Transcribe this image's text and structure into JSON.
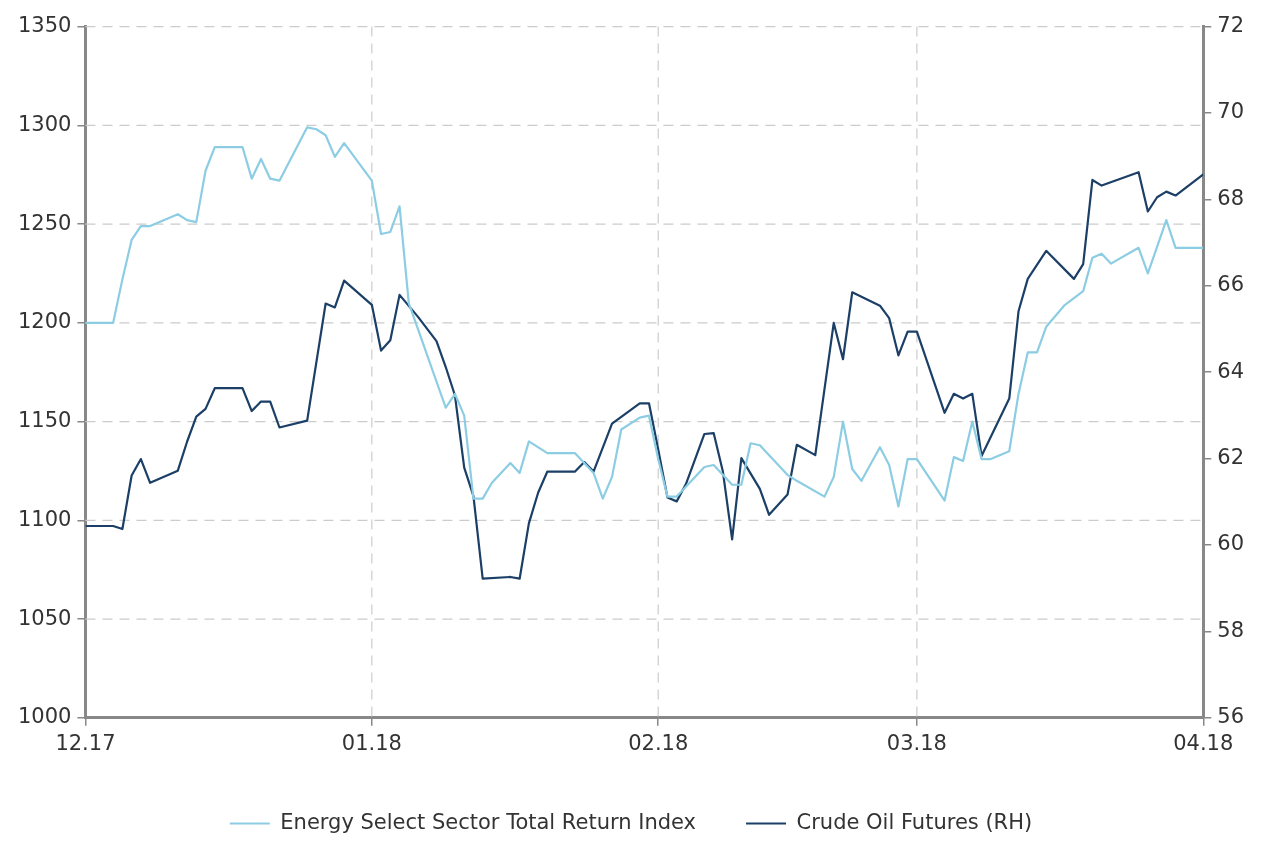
{
  "chart_data": {
    "type": "line",
    "xlim": [
      "2017-12-01",
      "2018-04-01"
    ],
    "xticks": [
      {
        "value": "2017-12-01",
        "label": "12.17"
      },
      {
        "value": "2018-01-01",
        "label": "01.18"
      },
      {
        "value": "2018-02-01",
        "label": "02.18"
      },
      {
        "value": "2018-03-01",
        "label": "03.18"
      },
      {
        "value": "2018-04-01",
        "label": "04.18"
      }
    ],
    "ylim": [
      1000,
      1350
    ],
    "yticks": [
      1000,
      1050,
      1100,
      1150,
      1200,
      1250,
      1300,
      1350
    ],
    "y2lim": [
      56,
      72
    ],
    "y2ticks": [
      56,
      58,
      60,
      62,
      64,
      66,
      68,
      70,
      72
    ],
    "grid": true,
    "legend": "bottom",
    "line_style": "solid",
    "series": [
      {
        "name": "Energy Select Sector Total Return Index",
        "color": "#8ccde3",
        "x": [
          "2017-12-01",
          "2017-12-04",
          "2017-12-05",
          "2017-12-06",
          "2017-12-07",
          "2017-12-08",
          "2017-12-11",
          "2017-12-12",
          "2017-12-13",
          "2017-12-14",
          "2017-12-15",
          "2017-12-18",
          "2017-12-19",
          "2017-12-20",
          "2017-12-21",
          "2017-12-22",
          "2017-12-25",
          "2017-12-26",
          "2017-12-27",
          "2017-12-28",
          "2017-12-29",
          "2018-01-01",
          "2018-01-02",
          "2018-01-03",
          "2018-01-04",
          "2018-01-05",
          "2018-01-09",
          "2018-01-10",
          "2018-01-11",
          "2018-01-12",
          "2018-01-13",
          "2018-01-14",
          "2018-01-16",
          "2018-01-17",
          "2018-01-18",
          "2018-01-20",
          "2018-01-23",
          "2018-01-25",
          "2018-01-26",
          "2018-01-27",
          "2018-01-28",
          "2018-01-30",
          "2018-01-31",
          "2018-02-01",
          "2018-02-02",
          "2018-02-03",
          "2018-02-06",
          "2018-02-07",
          "2018-02-09",
          "2018-02-10",
          "2018-02-11",
          "2018-02-12",
          "2018-02-14",
          "2018-02-15",
          "2018-02-16",
          "2018-02-19",
          "2018-02-20",
          "2018-02-21",
          "2018-02-22",
          "2018-02-23",
          "2018-02-25",
          "2018-02-26",
          "2018-02-27",
          "2018-02-28",
          "2018-03-01",
          "2018-03-04",
          "2018-03-05",
          "2018-03-06",
          "2018-03-07",
          "2018-03-08",
          "2018-03-09",
          "2018-03-11",
          "2018-03-12",
          "2018-03-13",
          "2018-03-14",
          "2018-03-15",
          "2018-03-17",
          "2018-03-19",
          "2018-03-20",
          "2018-03-21",
          "2018-03-22",
          "2018-03-25",
          "2018-03-26",
          "2018-03-28",
          "2018-03-29",
          "2018-04-01"
        ],
        "values": [
          1200,
          1200,
          1222,
          1242,
          1249,
          1249,
          1255,
          1252,
          1251,
          1277,
          1289,
          1289,
          1273,
          1283,
          1273,
          1272,
          1299,
          1298,
          1295,
          1284,
          1291,
          1272,
          1245,
          1246,
          1259,
          1210,
          1157,
          1164,
          1153,
          1111,
          1111,
          1119,
          1129,
          1124,
          1140,
          1134,
          1134,
          1124,
          1111,
          1122,
          1146,
          1152,
          1153,
          1131,
          1112,
          1112,
          1127,
          1128,
          1118,
          1118,
          1139,
          1138,
          1128,
          1123,
          1120,
          1112,
          1122,
          1150,
          1126,
          1120,
          1137,
          1128,
          1107,
          1131,
          1131,
          1110,
          1132,
          1130,
          1150,
          1131,
          1131,
          1135,
          1164,
          1185,
          1185,
          1198,
          1209,
          1216,
          1233,
          1235,
          1230,
          1238,
          1225,
          1252,
          1238,
          1238
        ]
      },
      {
        "name": "Crude Oil Futures (RH)",
        "color": "#1b3f66",
        "axis": "y2",
        "x": [
          "2017-12-01",
          "2017-12-04",
          "2017-12-05",
          "2017-12-06",
          "2017-12-07",
          "2017-12-08",
          "2017-12-11",
          "2017-12-12",
          "2017-12-13",
          "2017-12-14",
          "2017-12-15",
          "2017-12-18",
          "2017-12-19",
          "2017-12-20",
          "2017-12-21",
          "2017-12-22",
          "2017-12-25",
          "2017-12-27",
          "2017-12-28",
          "2017-12-29",
          "2018-01-01",
          "2018-01-02",
          "2018-01-03",
          "2018-01-04",
          "2018-01-06",
          "2018-01-08",
          "2018-01-09",
          "2018-01-10",
          "2018-01-11",
          "2018-01-12",
          "2018-01-13",
          "2018-01-16",
          "2018-01-17",
          "2018-01-18",
          "2018-01-19",
          "2018-01-20",
          "2018-01-23",
          "2018-01-24",
          "2018-01-25",
          "2018-01-27",
          "2018-01-30",
          "2018-01-31",
          "2018-02-01",
          "2018-02-02",
          "2018-02-03",
          "2018-02-04",
          "2018-02-06",
          "2018-02-07",
          "2018-02-08",
          "2018-02-09",
          "2018-02-10",
          "2018-02-12",
          "2018-02-13",
          "2018-02-15",
          "2018-02-16",
          "2018-02-18",
          "2018-02-20",
          "2018-02-21",
          "2018-02-22",
          "2018-02-25",
          "2018-02-26",
          "2018-02-27",
          "2018-02-28",
          "2018-03-01",
          "2018-03-04",
          "2018-03-05",
          "2018-03-06",
          "2018-03-07",
          "2018-03-08",
          "2018-03-11",
          "2018-03-12",
          "2018-03-13",
          "2018-03-15",
          "2018-03-18",
          "2018-03-19",
          "2018-03-20",
          "2018-03-21",
          "2018-03-25",
          "2018-03-26",
          "2018-03-27",
          "2018-03-28",
          "2018-03-29",
          "2018-04-01"
        ],
        "values": [
          60.44,
          60.44,
          60.37,
          61.61,
          61.99,
          61.44,
          61.72,
          62.39,
          62.97,
          63.15,
          63.63,
          63.63,
          63.1,
          63.32,
          63.32,
          62.72,
          62.88,
          65.59,
          65.5,
          66.12,
          65.56,
          64.5,
          64.74,
          65.79,
          65.28,
          64.72,
          64.12,
          63.46,
          61.79,
          61.13,
          59.22,
          59.26,
          59.22,
          60.5,
          61.21,
          61.7,
          61.7,
          61.92,
          61.7,
          62.81,
          63.28,
          63.28,
          62.21,
          61.1,
          61.01,
          61.41,
          62.57,
          62.59,
          61.7,
          60.13,
          62.01,
          61.3,
          60.7,
          61.17,
          62.32,
          62.08,
          65.14,
          64.3,
          65.85,
          65.54,
          65.25,
          64.39,
          64.94,
          64.94,
          63.06,
          63.5,
          63.39,
          63.5,
          62.06,
          63.39,
          65.41,
          66.16,
          66.81,
          66.16,
          66.5,
          68.45,
          68.32,
          68.63,
          67.72,
          68.05,
          68.18,
          68.09,
          68.58
        ]
      }
    ]
  }
}
